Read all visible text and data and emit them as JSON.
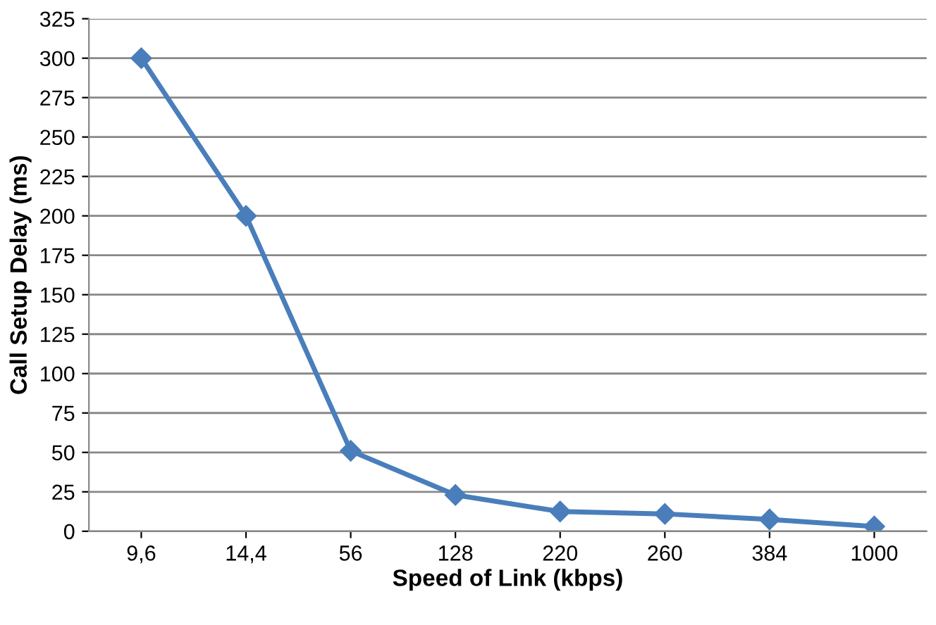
{
  "chart_data": {
    "type": "line",
    "xlabel": "Speed of Link (kbps)",
    "ylabel": "Call Setup Delay (ms)",
    "categories": [
      "9,6",
      "14,4",
      "56",
      "128",
      "220",
      "260",
      "384",
      "1000"
    ],
    "series": [
      {
        "color": "#4a7ebb",
        "values": [
          300,
          200,
          51,
          23,
          12.5,
          11,
          7.5,
          3
        ]
      }
    ],
    "ylim": [
      0,
      325
    ],
    "yticks": [
      0,
      25,
      50,
      75,
      100,
      125,
      150,
      175,
      200,
      225,
      250,
      275,
      300,
      325
    ],
    "grid": "y",
    "marker": "diamond",
    "line_style": "solid"
  }
}
